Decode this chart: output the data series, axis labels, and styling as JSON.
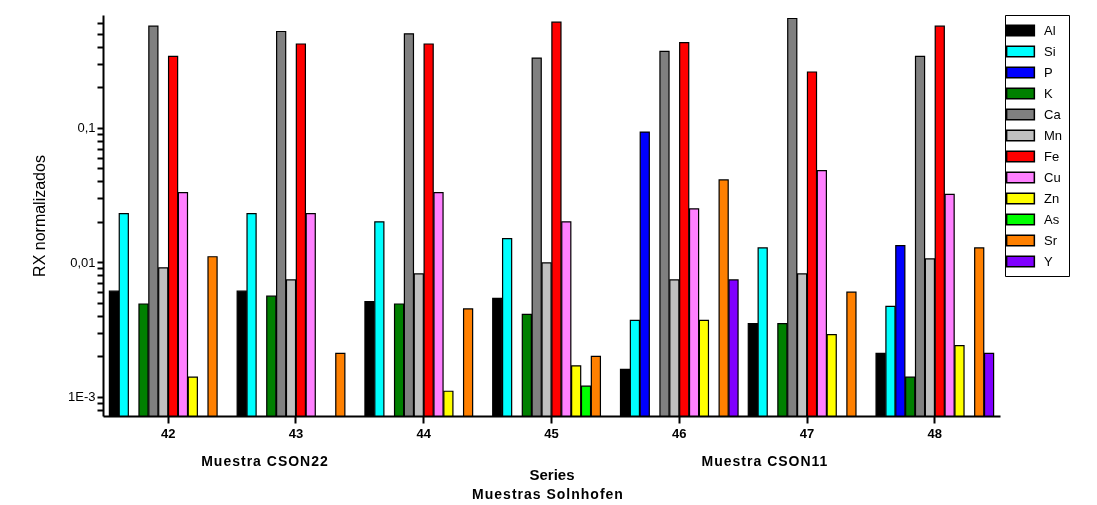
{
  "chart_data": {
    "type": "bar",
    "xlabel": "Series",
    "ylabel": "RX normalizados",
    "categories": [
      "42",
      "43",
      "44",
      "45",
      "46",
      "47",
      "48"
    ],
    "series": [
      {
        "name": "Al",
        "color": "#000000",
        "values": [
          0.0061,
          0.0061,
          0.0051,
          0.0054,
          0.0016,
          0.0035,
          0.0021
        ]
      },
      {
        "name": "Si",
        "color": "#00ffff",
        "values": [
          0.023,
          0.023,
          0.02,
          0.015,
          0.0037,
          0.0128,
          0.0047
        ]
      },
      {
        "name": "P",
        "color": "#0000ff",
        "values": [
          null,
          null,
          null,
          null,
          0.093,
          null,
          0.0133
        ]
      },
      {
        "name": "K",
        "color": "#008000",
        "values": [
          0.0049,
          0.0056,
          0.0049,
          0.0041,
          null,
          0.0035,
          0.0014
        ]
      },
      {
        "name": "Ca",
        "color": "#808080",
        "values": [
          0.57,
          0.52,
          0.5,
          0.33,
          0.37,
          0.65,
          0.34
        ]
      },
      {
        "name": "Mn",
        "color": "#c0c0c0",
        "values": [
          0.0091,
          0.0074,
          0.0082,
          0.0099,
          0.0074,
          0.0082,
          0.0106
        ]
      },
      {
        "name": "Fe",
        "color": "#ff0000",
        "values": [
          0.34,
          0.42,
          0.42,
          0.61,
          0.43,
          0.26,
          0.57
        ]
      },
      {
        "name": "Cu",
        "color": "#ff80ff",
        "values": [
          0.033,
          0.023,
          0.033,
          0.02,
          0.025,
          0.048,
          0.032
        ]
      },
      {
        "name": "Zn",
        "color": "#ffff00",
        "values": [
          0.0014,
          null,
          0.0011,
          0.0017,
          0.0037,
          0.0029,
          0.0024
        ]
      },
      {
        "name": "As",
        "color": "#00ff00",
        "values": [
          null,
          null,
          null,
          0.0012,
          null,
          null,
          null
        ]
      },
      {
        "name": "Sr",
        "color": "#ff8000",
        "values": [
          0.011,
          0.0021,
          0.0045,
          0.002,
          0.041,
          0.006,
          0.0128
        ]
      },
      {
        "name": "Y",
        "color": "#8000ff",
        "values": [
          null,
          null,
          null,
          null,
          0.0074,
          null,
          0.0021
        ]
      }
    ],
    "log": true,
    "ylim": [
      0.00072,
      0.69
    ],
    "yticks": [
      {
        "value": 0.0008,
        "label": null
      },
      {
        "value": 0.0009,
        "label": null
      },
      {
        "value": 0.001,
        "label": "1E-3"
      },
      {
        "value": 0.002,
        "label": null
      },
      {
        "value": 0.003,
        "label": null
      },
      {
        "value": 0.004,
        "label": null
      },
      {
        "value": 0.005,
        "label": null
      },
      {
        "value": 0.006,
        "label": null
      },
      {
        "value": 0.007,
        "label": null
      },
      {
        "value": 0.008,
        "label": null
      },
      {
        "value": 0.009,
        "label": null
      },
      {
        "value": 0.01,
        "label": "0,01"
      },
      {
        "value": 0.02,
        "label": null
      },
      {
        "value": 0.03,
        "label": null
      },
      {
        "value": 0.04,
        "label": null
      },
      {
        "value": 0.05,
        "label": null
      },
      {
        "value": 0.06,
        "label": null
      },
      {
        "value": 0.07,
        "label": null
      },
      {
        "value": 0.08,
        "label": null
      },
      {
        "value": 0.09,
        "label": null
      },
      {
        "value": 0.1,
        "label": "0,1"
      },
      {
        "value": 0.2,
        "label": null
      },
      {
        "value": 0.3,
        "label": null
      },
      {
        "value": 0.4,
        "label": null
      },
      {
        "value": 0.5,
        "label": null
      },
      {
        "value": 0.6,
        "label": null
      }
    ],
    "grid": false,
    "legend": "top right",
    "annotations": [
      "Muestra CSON22",
      "Muestra CSON11",
      "Muestras Solnhofen"
    ]
  }
}
